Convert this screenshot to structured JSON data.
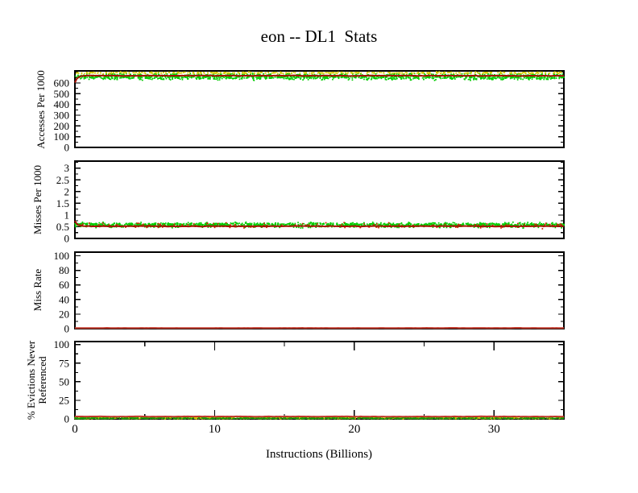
{
  "title": "eon -- DL1  Stats",
  "x_axis": {
    "label": "Instructions (Billions)",
    "range": [
      0,
      35
    ],
    "major_ticks": [
      0,
      10,
      20,
      30
    ],
    "major_tick_labels": [
      "0",
      "10",
      "20",
      "30"
    ],
    "minor_ticks": [
      5,
      15,
      25,
      35
    ]
  },
  "chart_data": [
    {
      "type": "scatter",
      "ylabel": "Accesses Per 1000",
      "ylim": [
        0,
        712
      ],
      "yticks": [
        0,
        100,
        200,
        300,
        400,
        500,
        600
      ],
      "ytick_labels": [
        "0",
        "100",
        "200",
        "300",
        "400",
        "500",
        "600"
      ],
      "y_minor_step": 50,
      "series": [
        {
          "name": "accesses-green-dots",
          "style": "dots",
          "color": "#00cc00",
          "mean": 658,
          "spread": 26,
          "n": 1500
        },
        {
          "name": "accesses-yellow-dots",
          "style": "dots",
          "color": "#d2ca00",
          "mean": 694,
          "spread": 7,
          "n": 450
        },
        {
          "name": "accesses-red-line",
          "style": "line",
          "color": "#a61305",
          "mean": 667,
          "noise": 4,
          "start": 603
        }
      ]
    },
    {
      "type": "scatter",
      "ylabel": "Misses Per 1000",
      "ylim": [
        0,
        3.3
      ],
      "yticks": [
        0,
        0.5,
        1,
        1.5,
        2,
        2.5,
        3
      ],
      "ytick_labels": [
        "0",
        "0.5",
        "1",
        "1.5",
        "2",
        "2.5",
        "3"
      ],
      "y_minor_step": 0.25,
      "series": [
        {
          "name": "misses-green-dots",
          "style": "dots",
          "color": "#00cc00",
          "mean": 0.575,
          "spread": 0.09,
          "n": 1500
        },
        {
          "name": "misses-red-dots",
          "style": "dots",
          "color": "#cc2200",
          "mean": 0.56,
          "spread": 0.1,
          "n": 160
        },
        {
          "name": "misses-red-line",
          "style": "line",
          "color": "#a61305",
          "mean": 0.52,
          "noise": 0.02,
          "start": 0.75
        }
      ]
    },
    {
      "type": "line",
      "ylabel": "Miss Rate",
      "ylim": [
        0,
        105
      ],
      "yticks": [
        0,
        20,
        40,
        60,
        80,
        100
      ],
      "ytick_labels": [
        "0",
        "20",
        "40",
        "60",
        "80",
        "100"
      ],
      "y_minor_step": 10,
      "series": [
        {
          "name": "missrate-red-line",
          "style": "line",
          "color": "#c0392b",
          "mean": 0.9,
          "noise": 0.25,
          "start": 0.9
        }
      ]
    },
    {
      "type": "scatter",
      "ylabel_lines": [
        "% Evictions Never",
        "Referenced"
      ],
      "ylim": [
        0,
        104
      ],
      "yticks": [
        0,
        25,
        50,
        75,
        100
      ],
      "ytick_labels": [
        "0",
        "25",
        "50",
        "75",
        "100"
      ],
      "y_minor_step": 12.5,
      "x_ticks_visible": true,
      "series": [
        {
          "name": "evictions-yellow-dots",
          "style": "dots",
          "color": "#d2ca00",
          "mean": 1.1,
          "spread": 1.0,
          "n": 800
        },
        {
          "name": "evictions-green-dots",
          "style": "dots",
          "color": "#1fa000",
          "mean": 0.9,
          "spread": 0.9,
          "n": 800
        },
        {
          "name": "evictions-red-line",
          "style": "line",
          "color": "#c0392b",
          "mean": 3.2,
          "noise": 0.35,
          "start": 3.2
        }
      ]
    }
  ]
}
